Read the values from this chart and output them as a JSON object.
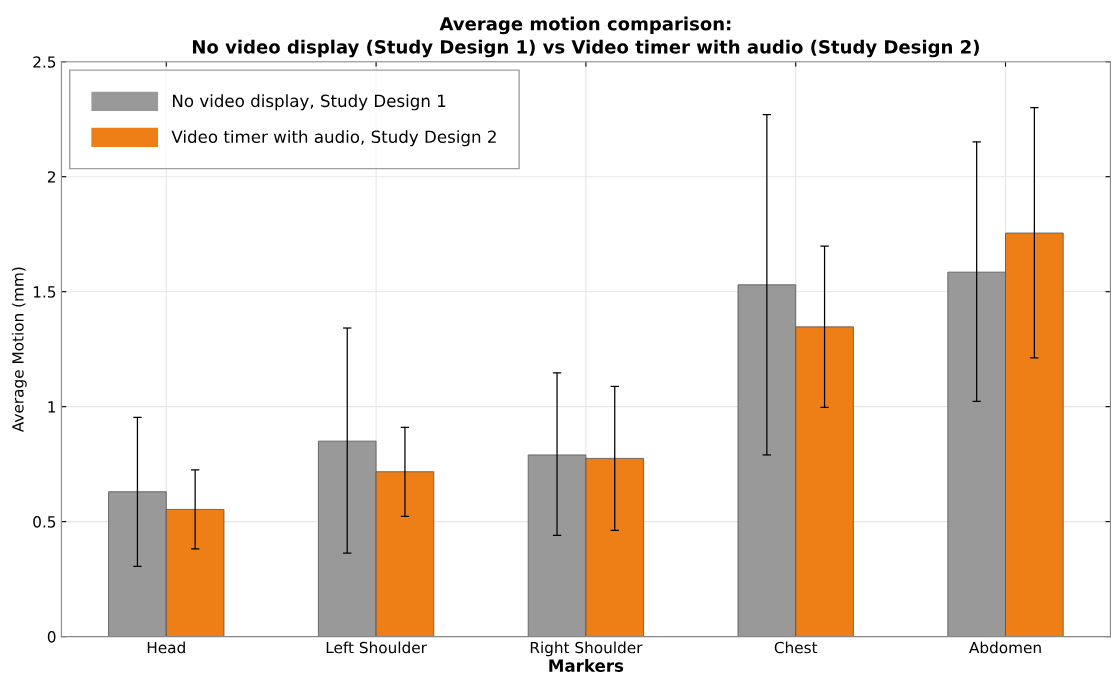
{
  "chart_data": {
    "type": "bar",
    "title": "Average motion comparison:\nNo video display (Study Design 1) vs Video timer with audio (Study Design 2)",
    "xlabel": "Markers",
    "ylabel": "Average Motion (mm)",
    "categories": [
      "Head",
      "Left Shoulder",
      "Right Shoulder",
      "Chest",
      "Abdomen"
    ],
    "series": [
      {
        "name": "No video display, Study Design 1",
        "color": "#999999",
        "values": [
          0.63,
          0.85,
          0.79,
          1.53,
          1.585
        ],
        "errors": [
          [
            0.305,
            0.953
          ],
          [
            0.363,
            1.342
          ],
          [
            0.44,
            1.147
          ],
          [
            0.79,
            2.27
          ],
          [
            1.023,
            2.152
          ]
        ]
      },
      {
        "name": "Video timer with audio, Study Design 2",
        "color": "#ee7f17",
        "values": [
          0.553,
          0.717,
          0.775,
          1.347,
          1.755
        ],
        "errors": [
          [
            0.382,
            0.725
          ],
          [
            0.523,
            0.91
          ],
          [
            0.462,
            1.088
          ],
          [
            0.997,
            1.698
          ],
          [
            1.212,
            2.3
          ]
        ]
      }
    ],
    "ylim": [
      0,
      2.5
    ],
    "yticks": [
      0,
      0.5,
      1,
      1.5,
      2,
      2.5
    ],
    "grid": true,
    "legend": "top left"
  }
}
